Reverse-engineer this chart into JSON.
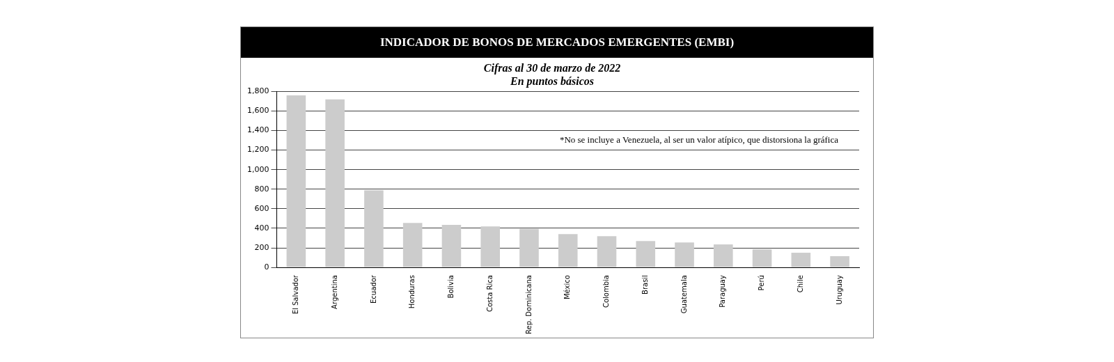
{
  "chart_data": {
    "type": "bar",
    "title": "INDICADOR DE BONOS DE MERCADOS EMERGENTES (EMBI)",
    "subtitle": "Cifras al 30 de marzo de 2022\nEn puntos básicos",
    "categories": [
      "El Salvador",
      "Argentina",
      "Ecuador",
      "Honduras",
      "Bolivia",
      "Costa Rica",
      "Rep. Dominicana",
      "México",
      "Colombia",
      "Brasil",
      "Guatemala",
      "Paraguay",
      "Perú",
      "Chile",
      "Uruguay"
    ],
    "values": [
      1760,
      1720,
      790,
      455,
      435,
      420,
      395,
      340,
      320,
      270,
      255,
      235,
      185,
      150,
      115
    ],
    "color": "#cccccc",
    "ylim": [
      0,
      1800
    ],
    "yticks": [
      0,
      {
        "value": 200,
        "label": "200"
      },
      {
        "value": 400,
        "label": "400"
      },
      {
        "value": 600,
        "label": "600"
      },
      {
        "value": 800,
        "label": "800"
      },
      {
        "value": 1000,
        "label": "1,000"
      },
      {
        "value": 1200,
        "label": "1,200"
      },
      {
        "value": 1400,
        "label": "1,400"
      },
      {
        "value": 1600,
        "label": "1,600"
      },
      {
        "value": 1800,
        "label": "1,800"
      }
    ],
    "annotations": [
      "*No se incluye a Venezuela, al ser un valor atípico, que distorsiona la gráfica"
    ],
    "grid": "y",
    "legend": false
  }
}
